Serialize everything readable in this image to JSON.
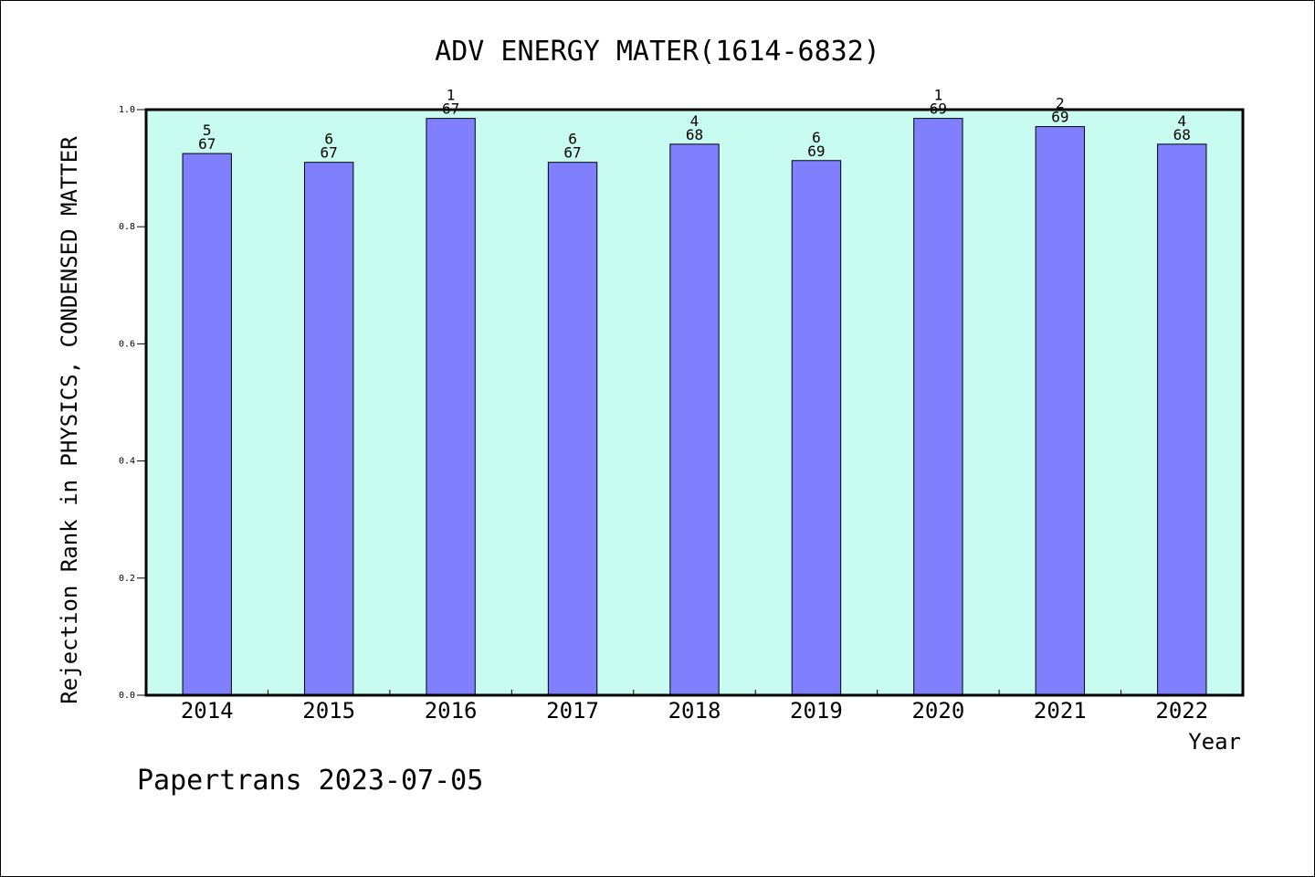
{
  "chart_data": {
    "type": "bar",
    "title": "ADV ENERGY MATER(1614-6832)",
    "xlabel": "Year",
    "ylabel": "Rejection Rank in PHYSICS, CONDENSED MATTER",
    "ylim": [
      0,
      1.0
    ],
    "yticks": [
      "0.0",
      "0.2",
      "0.4",
      "0.6",
      "0.8",
      "1.0"
    ],
    "categories": [
      "2014",
      "2015",
      "2016",
      "2017",
      "2018",
      "2019",
      "2020",
      "2021",
      "2022"
    ],
    "values": [
      0.925,
      0.91,
      0.985,
      0.91,
      0.941,
      0.913,
      0.985,
      0.971,
      0.941
    ],
    "labels_top": [
      "5",
      "6",
      "1",
      "6",
      "4",
      "6",
      "1",
      "2",
      "4"
    ],
    "labels_bottom": [
      "67",
      "67",
      "67",
      "67",
      "68",
      "69",
      "69",
      "69",
      "68"
    ],
    "bar_color": "#8080ff",
    "plot_background": "#c8fcf0",
    "grid": false,
    "legend": "none"
  },
  "footer": {
    "text": "Papertrans 2023-07-05"
  }
}
